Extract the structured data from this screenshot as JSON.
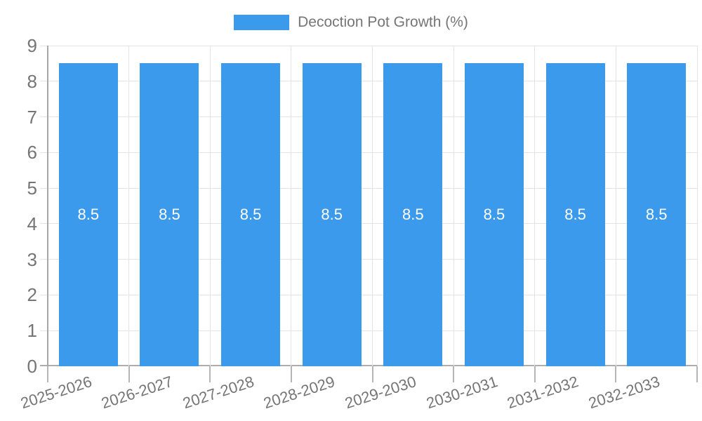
{
  "chart_data": {
    "type": "bar",
    "title": "",
    "legend": {
      "position": "top",
      "label": "Decoction Pot Growth (%)"
    },
    "categories": [
      "2025-2026",
      "2026-2027",
      "2027-2028",
      "2028-2029",
      "2029-2030",
      "2030-2031",
      "2031-2032",
      "2032-2033"
    ],
    "series": [
      {
        "name": "Decoction Pot Growth (%)",
        "values": [
          8.5,
          8.5,
          8.5,
          8.5,
          8.5,
          8.5,
          8.5,
          8.5
        ]
      }
    ],
    "bar_value_labels": [
      "8.5",
      "8.5",
      "8.5",
      "8.5",
      "8.5",
      "8.5",
      "8.5",
      "8.5"
    ],
    "xlabel": "",
    "ylabel": "",
    "ylim": [
      0,
      9
    ],
    "yticks": [
      0,
      1,
      2,
      3,
      4,
      5,
      6,
      7,
      8,
      9
    ],
    "grid": true,
    "x_label_rotation_deg": -18,
    "colors": {
      "bar": "#3B9AEB",
      "bar_label": "#FFFFFF",
      "legend_text": "#757575",
      "axis_text": "#757575",
      "grid_line": "#E4E4E4",
      "axis_line": "#ABABAB"
    }
  }
}
